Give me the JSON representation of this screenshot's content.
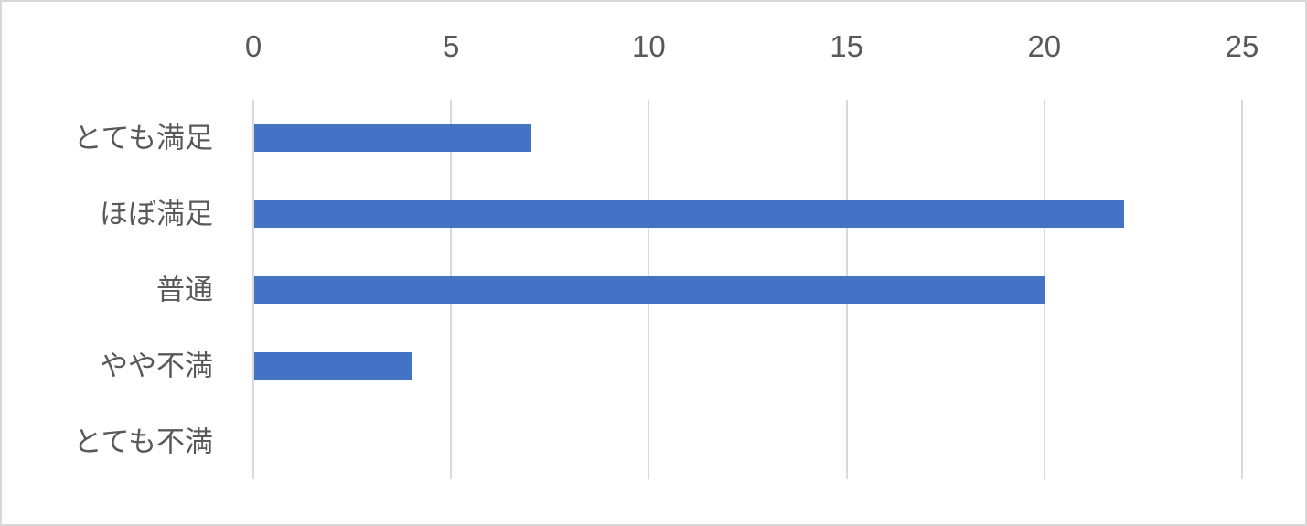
{
  "chart_data": {
    "type": "bar",
    "orientation": "horizontal",
    "title": "",
    "xlabel": "",
    "ylabel": "",
    "categories": [
      "とても満足",
      "ほぼ満足",
      "普通",
      "やや不満",
      "とても不満"
    ],
    "values": [
      7,
      22,
      20,
      4,
      0
    ],
    "xlim": [
      0,
      25
    ],
    "xticks": [
      0,
      5,
      10,
      15,
      20,
      25
    ],
    "tick_labels": [
      "0",
      "5",
      "10",
      "15",
      "20",
      "25"
    ],
    "grid": true,
    "axis_position": "top",
    "legend": null,
    "colors": {
      "bar": "#4472c4",
      "gridline": "#d9d9d9",
      "tick_label": "#595959",
      "category_label": "#595959",
      "frame_border": "#d9d9d9",
      "background": "#ffffff"
    }
  }
}
